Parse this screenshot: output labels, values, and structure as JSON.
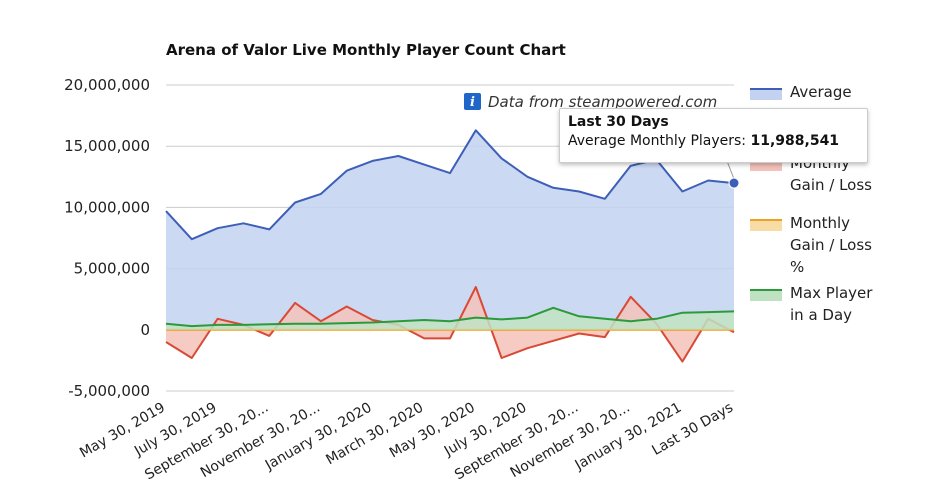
{
  "chart_data": {
    "type": "area",
    "title": "Arena of Valor Live Monthly Player Count Chart",
    "source_note": "Data from steampowered.com",
    "ylim": [
      -5000000,
      20000000
    ],
    "y_ticks": [
      "20,000,000",
      "15,000,000",
      "10,000,000",
      "5,000,000",
      "0",
      "-5,000,000"
    ],
    "y_tick_values": [
      20000000,
      15000000,
      10000000,
      5000000,
      0,
      -5000000
    ],
    "x_tick_labels": [
      "May 30, 2019",
      "July 30, 2019",
      "September 30, 20...",
      "November 30, 20...",
      "January 30, 2020",
      "March 30, 2020",
      "May 30, 2020",
      "July 30, 2020",
      "September 30, 20...",
      "November 30, 20...",
      "January 30, 2021",
      "Last 30 Days"
    ],
    "x_tick_indices": [
      0,
      2,
      4,
      6,
      8,
      10,
      12,
      14,
      16,
      18,
      20,
      22
    ],
    "series": [
      {
        "name": "Average",
        "color": "#3d5fb8",
        "fill": "#c3d2f1",
        "values": [
          9700000,
          7400000,
          8300000,
          8700000,
          8200000,
          10400000,
          11100000,
          13000000,
          13800000,
          14200000,
          13500000,
          12800000,
          16300000,
          14000000,
          12500000,
          11600000,
          11300000,
          10700000,
          13400000,
          13900000,
          11300000,
          12200000,
          11988541
        ]
      },
      {
        "name": "Monthly Gain / Loss",
        "color": "#d84a35",
        "fill": "#f3c2ba",
        "values": [
          -1000000,
          -2300000,
          900000,
          400000,
          -500000,
          2200000,
          700000,
          1900000,
          800000,
          400000,
          -700000,
          -700000,
          3500000,
          -2300000,
          -1500000,
          -900000,
          -300000,
          -600000,
          2700000,
          500000,
          -2600000,
          900000,
          -200000
        ]
      },
      {
        "name": "Monthly Gain / Loss %",
        "color": "#f0a020",
        "fill": "#f8dca6",
        "values": [
          0,
          0,
          0,
          0,
          0,
          0,
          0,
          0,
          0,
          0,
          0,
          0,
          0,
          0,
          0,
          0,
          0,
          0,
          0,
          0,
          0,
          0,
          0
        ]
      },
      {
        "name": "Max Player in a Day",
        "color": "#2c9a3a",
        "fill": "#bfe3c2",
        "values": [
          500000,
          300000,
          400000,
          400000,
          450000,
          500000,
          500000,
          550000,
          600000,
          700000,
          800000,
          700000,
          1000000,
          850000,
          1000000,
          1800000,
          1100000,
          900000,
          700000,
          900000,
          1400000,
          1450000,
          1500000
        ]
      }
    ],
    "legend": {
      "position": "right",
      "entries": [
        {
          "lines": [
            "Average"
          ]
        },
        {
          "lines": [
            "Monthly",
            "Gain / Loss"
          ]
        },
        {
          "lines": [
            "Monthly",
            "Gain / Loss",
            "%"
          ]
        },
        {
          "lines": [
            "Max Player",
            "in a Day"
          ]
        }
      ]
    },
    "grid": true
  },
  "tooltip": {
    "title": "Last 30 Days",
    "label": "Average Monthly Players: ",
    "value": "11,988,541"
  },
  "info_icon_glyph": "i"
}
